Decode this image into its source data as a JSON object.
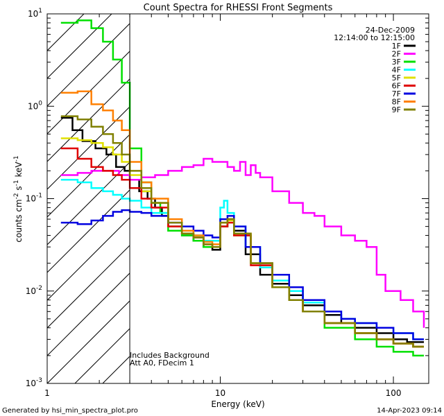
{
  "chart_data": {
    "type": "line",
    "step": true,
    "title": "Count Spectra for RHESSI Front Segments",
    "xlabel": "Energy (keV)",
    "ylabel": "counts cm^-2 s^-1 keV^-1",
    "xscale": "log",
    "yscale": "log",
    "xlim": [
      1,
      160
    ],
    "ylim": [
      0.001,
      10
    ],
    "x_ticks": [
      {
        "value": 1,
        "label": "1"
      },
      {
        "value": 10,
        "label": "10"
      },
      {
        "value": 100,
        "label": "100"
      }
    ],
    "y_ticks": [
      {
        "value": 0.001,
        "base": "10",
        "exp": "-3"
      },
      {
        "value": 0.01,
        "base": "10",
        "exp": "-2"
      },
      {
        "value": 0.1,
        "base": "10",
        "exp": "-1"
      },
      {
        "value": 1,
        "base": "10",
        "exp": "0"
      },
      {
        "value": 10,
        "base": "10",
        "exp": "1"
      }
    ],
    "date": "24-Dec-2009",
    "time_range": "12:14:00 to 12:15:00",
    "hatched_region": {
      "x_from": 1,
      "x_to": 3
    },
    "notes": [
      "Includes Background",
      "Att A0, FDecim 1"
    ],
    "series": [
      {
        "name": "1F",
        "color": "#000000",
        "points": [
          [
            1.2,
            0.75
          ],
          [
            1.4,
            0.55
          ],
          [
            1.6,
            0.42
          ],
          [
            1.9,
            0.35
          ],
          [
            2.2,
            0.3
          ],
          [
            2.5,
            0.22
          ],
          [
            2.8,
            0.2
          ],
          [
            3.0,
            0.16
          ],
          [
            3.4,
            0.12
          ],
          [
            3.8,
            0.1
          ],
          [
            4.2,
            0.08
          ],
          [
            4.6,
            0.065
          ],
          [
            5,
            0.05
          ],
          [
            6,
            0.04
          ],
          [
            7,
            0.035
          ],
          [
            8,
            0.03
          ],
          [
            9,
            0.028
          ],
          [
            10,
            0.05
          ],
          [
            11,
            0.06
          ],
          [
            12,
            0.045
          ],
          [
            14,
            0.025
          ],
          [
            17,
            0.015
          ],
          [
            20,
            0.012
          ],
          [
            25,
            0.009
          ],
          [
            30,
            0.007
          ],
          [
            40,
            0.0055
          ],
          [
            50,
            0.0045
          ],
          [
            60,
            0.004
          ],
          [
            80,
            0.0035
          ],
          [
            100,
            0.003
          ],
          [
            120,
            0.0028
          ],
          [
            150,
            0.0028
          ]
        ]
      },
      {
        "name": "2F",
        "color": "#ff00ff",
        "points": [
          [
            1.2,
            0.18
          ],
          [
            1.5,
            0.19
          ],
          [
            1.8,
            0.2
          ],
          [
            2.2,
            0.2
          ],
          [
            2.6,
            0.18
          ],
          [
            3.0,
            0.16
          ],
          [
            3.5,
            0.17
          ],
          [
            4.2,
            0.18
          ],
          [
            5,
            0.2
          ],
          [
            6,
            0.22
          ],
          [
            7,
            0.23
          ],
          [
            8,
            0.27
          ],
          [
            9,
            0.25
          ],
          [
            10,
            0.25
          ],
          [
            11,
            0.22
          ],
          [
            12,
            0.2
          ],
          [
            13,
            0.25
          ],
          [
            14,
            0.18
          ],
          [
            15,
            0.23
          ],
          [
            16,
            0.19
          ],
          [
            17,
            0.17
          ],
          [
            20,
            0.12
          ],
          [
            25,
            0.09
          ],
          [
            30,
            0.07
          ],
          [
            35,
            0.065
          ],
          [
            40,
            0.05
          ],
          [
            50,
            0.04
          ],
          [
            60,
            0.035
          ],
          [
            70,
            0.03
          ],
          [
            80,
            0.015
          ],
          [
            90,
            0.01
          ],
          [
            100,
            0.01
          ],
          [
            110,
            0.008
          ],
          [
            130,
            0.006
          ],
          [
            150,
            0.004
          ]
        ]
      },
      {
        "name": "3F",
        "color": "#00e000",
        "points": [
          [
            1.2,
            8.0
          ],
          [
            1.5,
            8.5
          ],
          [
            1.8,
            7.0
          ],
          [
            2.1,
            5.0
          ],
          [
            2.4,
            3.2
          ],
          [
            2.7,
            1.8
          ],
          [
            3.0,
            0.35
          ],
          [
            3.5,
            0.15
          ],
          [
            4.0,
            0.09
          ],
          [
            4.5,
            0.07
          ],
          [
            5,
            0.045
          ],
          [
            6,
            0.04
          ],
          [
            7,
            0.035
          ],
          [
            8,
            0.03
          ],
          [
            9,
            0.03
          ],
          [
            10,
            0.05
          ],
          [
            11,
            0.06
          ],
          [
            12,
            0.04
          ],
          [
            15,
            0.02
          ],
          [
            20,
            0.011
          ],
          [
            25,
            0.008
          ],
          [
            30,
            0.006
          ],
          [
            40,
            0.004
          ],
          [
            60,
            0.003
          ],
          [
            80,
            0.0025
          ],
          [
            100,
            0.0022
          ],
          [
            130,
            0.002
          ],
          [
            150,
            0.002
          ]
        ]
      },
      {
        "name": "4F",
        "color": "#00ffff",
        "points": [
          [
            1.2,
            0.16
          ],
          [
            1.5,
            0.15
          ],
          [
            1.8,
            0.13
          ],
          [
            2.1,
            0.12
          ],
          [
            2.4,
            0.11
          ],
          [
            2.7,
            0.1
          ],
          [
            3.0,
            0.095
          ],
          [
            3.5,
            0.08
          ],
          [
            4,
            0.07
          ],
          [
            5,
            0.05
          ],
          [
            6,
            0.045
          ],
          [
            7,
            0.04
          ],
          [
            8,
            0.035
          ],
          [
            9,
            0.035
          ],
          [
            10,
            0.08
          ],
          [
            10.5,
            0.095
          ],
          [
            11,
            0.07
          ],
          [
            12,
            0.05
          ],
          [
            14,
            0.03
          ],
          [
            17,
            0.018
          ],
          [
            20,
            0.013
          ],
          [
            25,
            0.01
          ],
          [
            30,
            0.0075
          ],
          [
            40,
            0.006
          ],
          [
            50,
            0.005
          ],
          [
            60,
            0.0045
          ],
          [
            80,
            0.004
          ],
          [
            100,
            0.0035
          ],
          [
            130,
            0.003
          ],
          [
            150,
            0.003
          ]
        ]
      },
      {
        "name": "5F",
        "color": "#e0e000",
        "points": [
          [
            1.2,
            0.45
          ],
          [
            1.5,
            0.43
          ],
          [
            1.8,
            0.4
          ],
          [
            2.1,
            0.36
          ],
          [
            2.4,
            0.3
          ],
          [
            2.7,
            0.25
          ],
          [
            3.0,
            0.18
          ],
          [
            3.5,
            0.12
          ],
          [
            4,
            0.09
          ],
          [
            5,
            0.05
          ],
          [
            6,
            0.042
          ],
          [
            7,
            0.038
          ],
          [
            8,
            0.032
          ],
          [
            9,
            0.03
          ],
          [
            10,
            0.055
          ],
          [
            11,
            0.058
          ],
          [
            12,
            0.04
          ],
          [
            15,
            0.02
          ],
          [
            20,
            0.011
          ],
          [
            25,
            0.008
          ],
          [
            30,
            0.006
          ],
          [
            40,
            0.0045
          ],
          [
            60,
            0.0035
          ],
          [
            80,
            0.003
          ],
          [
            100,
            0.0027
          ],
          [
            130,
            0.0025
          ],
          [
            150,
            0.0025
          ]
        ]
      },
      {
        "name": "6F",
        "color": "#e00000",
        "points": [
          [
            1.2,
            0.35
          ],
          [
            1.5,
            0.27
          ],
          [
            1.8,
            0.22
          ],
          [
            2.1,
            0.2
          ],
          [
            2.4,
            0.18
          ],
          [
            2.7,
            0.16
          ],
          [
            3.0,
            0.13
          ],
          [
            3.5,
            0.1
          ],
          [
            4,
            0.08
          ],
          [
            5,
            0.05
          ],
          [
            6,
            0.042
          ],
          [
            7,
            0.038
          ],
          [
            8,
            0.032
          ],
          [
            9,
            0.03
          ],
          [
            10,
            0.05
          ],
          [
            11,
            0.055
          ],
          [
            12,
            0.04
          ],
          [
            15,
            0.019
          ],
          [
            20,
            0.011
          ],
          [
            25,
            0.008
          ],
          [
            30,
            0.006
          ],
          [
            40,
            0.0045
          ],
          [
            60,
            0.0035
          ],
          [
            80,
            0.003
          ],
          [
            100,
            0.0027
          ],
          [
            130,
            0.0025
          ],
          [
            150,
            0.0025
          ]
        ]
      },
      {
        "name": "7F",
        "color": "#0000e0",
        "points": [
          [
            1.2,
            0.055
          ],
          [
            1.5,
            0.053
          ],
          [
            1.8,
            0.058
          ],
          [
            2.1,
            0.065
          ],
          [
            2.4,
            0.072
          ],
          [
            2.7,
            0.075
          ],
          [
            3.0,
            0.072
          ],
          [
            3.5,
            0.07
          ],
          [
            4,
            0.065
          ],
          [
            5,
            0.055
          ],
          [
            6,
            0.05
          ],
          [
            7,
            0.045
          ],
          [
            8,
            0.04
          ],
          [
            9,
            0.038
          ],
          [
            10,
            0.06
          ],
          [
            11,
            0.065
          ],
          [
            12,
            0.05
          ],
          [
            14,
            0.03
          ],
          [
            17,
            0.02
          ],
          [
            20,
            0.015
          ],
          [
            25,
            0.011
          ],
          [
            30,
            0.008
          ],
          [
            40,
            0.006
          ],
          [
            50,
            0.005
          ],
          [
            60,
            0.0045
          ],
          [
            80,
            0.004
          ],
          [
            100,
            0.0035
          ],
          [
            130,
            0.003
          ],
          [
            150,
            0.003
          ]
        ]
      },
      {
        "name": "8F",
        "color": "#ff8000",
        "points": [
          [
            1.2,
            1.4
          ],
          [
            1.5,
            1.45
          ],
          [
            1.8,
            1.05
          ],
          [
            2.1,
            0.9
          ],
          [
            2.4,
            0.7
          ],
          [
            2.7,
            0.55
          ],
          [
            3.0,
            0.25
          ],
          [
            3.5,
            0.15
          ],
          [
            4,
            0.1
          ],
          [
            5,
            0.06
          ],
          [
            6,
            0.045
          ],
          [
            7,
            0.04
          ],
          [
            8,
            0.034
          ],
          [
            9,
            0.032
          ],
          [
            10,
            0.055
          ],
          [
            11,
            0.06
          ],
          [
            12,
            0.042
          ],
          [
            15,
            0.02
          ],
          [
            20,
            0.011
          ],
          [
            25,
            0.008
          ],
          [
            30,
            0.006
          ],
          [
            40,
            0.0045
          ],
          [
            60,
            0.0035
          ],
          [
            80,
            0.003
          ],
          [
            100,
            0.0027
          ],
          [
            130,
            0.0025
          ],
          [
            150,
            0.0025
          ]
        ]
      },
      {
        "name": "9F",
        "color": "#808000",
        "points": [
          [
            1.2,
            0.78
          ],
          [
            1.5,
            0.72
          ],
          [
            1.8,
            0.6
          ],
          [
            2.1,
            0.5
          ],
          [
            2.4,
            0.4
          ],
          [
            2.7,
            0.3
          ],
          [
            3.0,
            0.2
          ],
          [
            3.5,
            0.13
          ],
          [
            4,
            0.09
          ],
          [
            5,
            0.055
          ],
          [
            6,
            0.042
          ],
          [
            7,
            0.038
          ],
          [
            8,
            0.032
          ],
          [
            9,
            0.03
          ],
          [
            10,
            0.055
          ],
          [
            11,
            0.06
          ],
          [
            12,
            0.042
          ],
          [
            15,
            0.02
          ],
          [
            20,
            0.011
          ],
          [
            25,
            0.008
          ],
          [
            30,
            0.006
          ],
          [
            40,
            0.0045
          ],
          [
            60,
            0.0035
          ],
          [
            80,
            0.003
          ],
          [
            100,
            0.0027
          ],
          [
            130,
            0.0025
          ],
          [
            150,
            0.0025
          ]
        ]
      }
    ]
  },
  "footer": {
    "generated_by": "Generated by hsi_min_spectra_plot.pro",
    "timestamp": "14-Apr-2023 09:14"
  }
}
